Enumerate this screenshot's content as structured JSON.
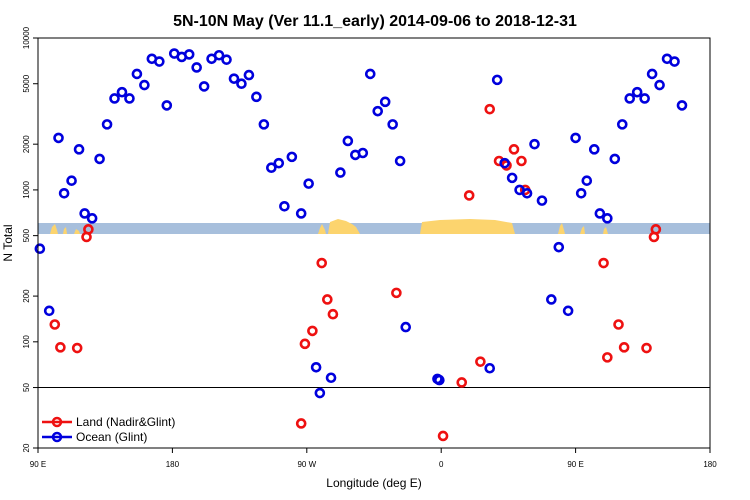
{
  "chart_data": {
    "type": "scatter",
    "title": "5N-10N May (Ver 11.1_early)   2014-09-06 to 2018-12-31",
    "xlabel": "Longitude (deg E)",
    "ylabel": "N Total",
    "xlim": [
      90,
      270
    ],
    "ylim": [
      20,
      10000
    ],
    "yscale": "log",
    "x_ticks": [
      {
        "value": 90,
        "label": "90 E"
      },
      {
        "value": 126,
        "label": "180"
      },
      {
        "value": 162,
        "label": "90 W"
      },
      {
        "value": 198,
        "label": "0"
      },
      {
        "value": 234,
        "label": "90 E"
      },
      {
        "value": 270,
        "label": "180"
      }
    ],
    "y_ticks": [
      {
        "value": 20,
        "label": "20"
      },
      {
        "value": 50,
        "label": "50"
      },
      {
        "value": 100,
        "label": "100"
      },
      {
        "value": 200,
        "label": "200"
      },
      {
        "value": 500,
        "label": "500"
      },
      {
        "value": 1000,
        "label": "1000"
      },
      {
        "value": 2000,
        "label": "2000"
      },
      {
        "value": 5000,
        "label": "5000"
      },
      {
        "value": 10000,
        "label": "10000"
      }
    ],
    "reference_line_y": 50,
    "colors": {
      "land": "#ee1111",
      "ocean": "#0000dd",
      "map_ocean": "#a7bfdc",
      "map_land": "#fcd46e"
    },
    "legend_position": "bottom-left",
    "series": [
      {
        "name": "Land (Nadir&Glint)",
        "color": "#ee1111",
        "points": [
          [
            94.5,
            130
          ],
          [
            96.0,
            92
          ],
          [
            100.5,
            91
          ],
          [
            103.0,
            490
          ],
          [
            103.5,
            550
          ],
          [
            160.5,
            29
          ],
          [
            161.5,
            97
          ],
          [
            163.5,
            118
          ],
          [
            166.0,
            330
          ],
          [
            167.5,
            190
          ],
          [
            169.0,
            152
          ],
          [
            186.0,
            210
          ],
          [
            198.5,
            24
          ],
          [
            203.5,
            54
          ],
          [
            205.5,
            920
          ],
          [
            208.5,
            74
          ],
          [
            211.0,
            3400
          ],
          [
            213.5,
            1550
          ],
          [
            215.5,
            1450
          ],
          [
            217.5,
            1850
          ],
          [
            219.5,
            1550
          ],
          [
            220.5,
            1000
          ],
          [
            241.5,
            330
          ],
          [
            242.5,
            79
          ],
          [
            245.5,
            130
          ],
          [
            247.0,
            92
          ],
          [
            253.0,
            91
          ],
          [
            255.0,
            490
          ],
          [
            255.5,
            550
          ]
        ]
      },
      {
        "name": "Ocean (Glint)",
        "color": "#0000dd",
        "points": [
          [
            90.5,
            410
          ],
          [
            93.0,
            160
          ],
          [
            95.5,
            2200
          ],
          [
            97.0,
            950
          ],
          [
            99.0,
            1150
          ],
          [
            101.0,
            1850
          ],
          [
            102.5,
            700
          ],
          [
            104.5,
            650
          ],
          [
            106.5,
            1600
          ],
          [
            108.5,
            2700
          ],
          [
            110.5,
            4000
          ],
          [
            112.5,
            4400
          ],
          [
            114.5,
            4000
          ],
          [
            116.5,
            5800
          ],
          [
            118.5,
            4900
          ],
          [
            120.5,
            7300
          ],
          [
            122.5,
            7000
          ],
          [
            124.5,
            3600
          ],
          [
            126.5,
            7900
          ],
          [
            128.5,
            7500
          ],
          [
            130.5,
            7800
          ],
          [
            132.5,
            6400
          ],
          [
            134.5,
            4800
          ],
          [
            136.5,
            7300
          ],
          [
            138.5,
            7700
          ],
          [
            140.5,
            7200
          ],
          [
            142.5,
            5400
          ],
          [
            144.5,
            5000
          ],
          [
            146.5,
            5700
          ],
          [
            148.5,
            4100
          ],
          [
            150.5,
            2700
          ],
          [
            152.5,
            1400
          ],
          [
            154.5,
            1500
          ],
          [
            156.0,
            780
          ],
          [
            158.0,
            1650
          ],
          [
            160.5,
            700
          ],
          [
            162.5,
            1100
          ],
          [
            164.5,
            68
          ],
          [
            165.5,
            46
          ],
          [
            168.5,
            58
          ],
          [
            171.0,
            1300
          ],
          [
            173.0,
            2100
          ],
          [
            175.0,
            1700
          ],
          [
            177.0,
            1750
          ],
          [
            179.0,
            5800
          ],
          [
            181.0,
            3300
          ],
          [
            183.0,
            3800
          ],
          [
            185.0,
            2700
          ],
          [
            187.0,
            1550
          ],
          [
            188.5,
            125
          ],
          [
            197.0,
            57
          ],
          [
            197.5,
            56
          ],
          [
            211.0,
            67
          ],
          [
            213.0,
            5300
          ],
          [
            215.0,
            1500
          ],
          [
            217.0,
            1200
          ],
          [
            219.0,
            1000
          ],
          [
            221.0,
            950
          ],
          [
            223.0,
            2000
          ],
          [
            225.0,
            850
          ],
          [
            227.5,
            190
          ],
          [
            229.5,
            420
          ],
          [
            232.0,
            160
          ],
          [
            234.0,
            2200
          ],
          [
            235.5,
            950
          ],
          [
            237.0,
            1150
          ],
          [
            239.0,
            1850
          ],
          [
            240.5,
            700
          ],
          [
            242.5,
            650
          ],
          [
            244.5,
            1600
          ],
          [
            246.5,
            2700
          ],
          [
            248.5,
            4000
          ],
          [
            250.5,
            4400
          ],
          [
            252.5,
            4000
          ],
          [
            254.5,
            5800
          ],
          [
            256.5,
            4900
          ],
          [
            258.5,
            7300
          ],
          [
            260.5,
            7000
          ],
          [
            262.5,
            3600
          ]
        ]
      }
    ]
  }
}
